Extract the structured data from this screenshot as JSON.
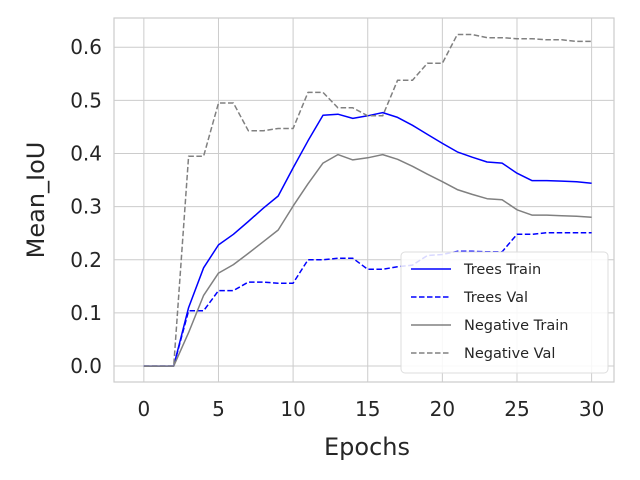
{
  "chart_data": {
    "type": "line",
    "title": "",
    "xlabel": "Epochs",
    "ylabel": "Mean_IoU",
    "xlim": [
      -2,
      31.5
    ],
    "ylim": [
      -0.03,
      0.655
    ],
    "xticks": [
      0,
      5,
      10,
      15,
      20,
      25,
      30
    ],
    "yticks": [
      0.0,
      0.1,
      0.2,
      0.3,
      0.4,
      0.5,
      0.6
    ],
    "xtick_labels": [
      "0",
      "5",
      "10",
      "15",
      "20",
      "25",
      "30"
    ],
    "ytick_labels": [
      "0.0",
      "0.1",
      "0.2",
      "0.3",
      "0.4",
      "0.5",
      "0.6"
    ],
    "grid": true,
    "legend_position": "lower-right",
    "x": [
      0,
      1,
      2,
      3,
      4,
      5,
      6,
      7,
      8,
      9,
      10,
      11,
      12,
      13,
      14,
      15,
      16,
      17,
      18,
      19,
      20,
      21,
      22,
      23,
      24,
      25,
      26,
      27,
      28,
      29,
      30
    ],
    "series": [
      {
        "name": "Trees Train",
        "color": "#0000ff",
        "dash": "solid",
        "values": [
          0,
          0,
          0,
          0.11,
          0.185,
          0.228,
          0.248,
          0.272,
          0.297,
          0.32,
          0.373,
          0.424,
          0.472,
          0.474,
          0.466,
          0.471,
          0.477,
          0.468,
          0.453,
          0.436,
          0.419,
          0.403,
          0.393,
          0.384,
          0.382,
          0.363,
          0.349,
          0.349,
          0.348,
          0.347,
          0.344
        ]
      },
      {
        "name": "Trees Val",
        "color": "#0000ff",
        "dash": "dashed",
        "values": [
          0,
          0,
          0,
          0.104,
          0.104,
          0.142,
          0.142,
          0.158,
          0.158,
          0.156,
          0.156,
          0.2,
          0.2,
          0.203,
          0.203,
          0.182,
          0.182,
          0.187,
          0.19,
          0.208,
          0.21,
          0.216,
          0.216,
          0.215,
          0.215,
          0.248,
          0.248,
          0.251,
          0.251,
          0.251,
          0.251
        ]
      },
      {
        "name": "Negative Train",
        "color": "#808080",
        "dash": "solid",
        "values": [
          0,
          0,
          0,
          0.063,
          0.133,
          0.175,
          0.191,
          0.212,
          0.234,
          0.256,
          0.301,
          0.343,
          0.382,
          0.398,
          0.388,
          0.392,
          0.398,
          0.389,
          0.376,
          0.361,
          0.347,
          0.332,
          0.323,
          0.315,
          0.313,
          0.294,
          0.284,
          0.284,
          0.283,
          0.282,
          0.28
        ]
      },
      {
        "name": "Negative Val",
        "color": "#808080",
        "dash": "dashed",
        "values": [
          0,
          0,
          0,
          0.395,
          0.395,
          0.495,
          0.495,
          0.443,
          0.443,
          0.447,
          0.447,
          0.515,
          0.515,
          0.486,
          0.486,
          0.471,
          0.471,
          0.538,
          0.538,
          0.57,
          0.57,
          0.624,
          0.624,
          0.618,
          0.618,
          0.616,
          0.616,
          0.614,
          0.614,
          0.611,
          0.611
        ]
      }
    ]
  }
}
